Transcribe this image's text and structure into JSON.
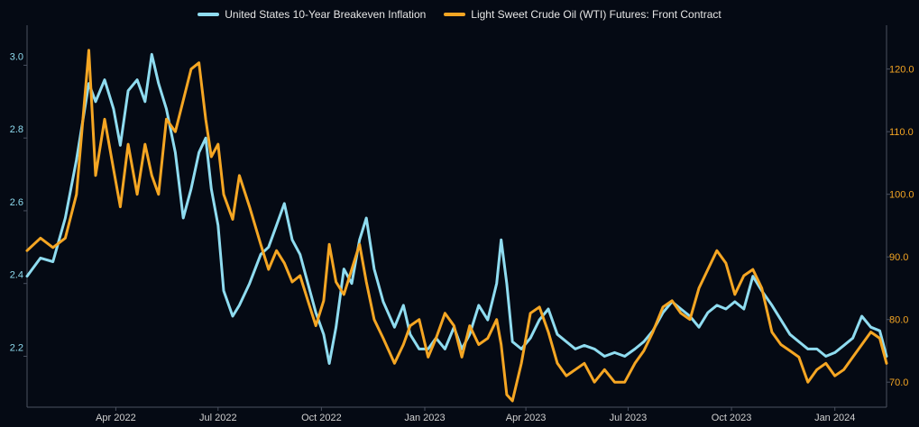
{
  "colors": {
    "background": "#050a14",
    "axis": "#4a5160",
    "breakeven": "#8fdcf0",
    "oil": "#f5a623",
    "tick_left": "#8fdcf0",
    "tick_right": "#f5a623",
    "tick_x": "#d0d0d0"
  },
  "chart_data": {
    "type": "line",
    "grid": false,
    "legend_position": "top-center",
    "x_ticks": [
      "Apr 2022",
      "Jul 2022",
      "Oct 2022",
      "Jan 2023",
      "Apr 2023",
      "Jul 2023",
      "Oct 2023",
      "Jan 2024"
    ],
    "x_range": [
      "2022-01-12",
      "2024-02-16"
    ],
    "y_left": {
      "ticks": [
        "2.2",
        "2.4",
        "2.6",
        "2.8",
        "3.0"
      ],
      "range": [
        2.06,
        3.11
      ]
    },
    "y_right": {
      "ticks": [
        "70.0",
        "80.0",
        "90.0",
        "100.0",
        "110.0",
        "120.0"
      ],
      "range": [
        66.0,
        127.0
      ]
    },
    "series": [
      {
        "name": "United States 10-Year Breakeven Inflation",
        "axis": "left",
        "points": [
          [
            "2022-01-12",
            2.42
          ],
          [
            "2022-01-24",
            2.47
          ],
          [
            "2022-02-04",
            2.46
          ],
          [
            "2022-02-15",
            2.58
          ],
          [
            "2022-02-25",
            2.74
          ],
          [
            "2022-03-08",
            2.95
          ],
          [
            "2022-03-14",
            2.9
          ],
          [
            "2022-03-22",
            2.96
          ],
          [
            "2022-03-30",
            2.88
          ],
          [
            "2022-04-05",
            2.78
          ],
          [
            "2022-04-12",
            2.93
          ],
          [
            "2022-04-20",
            2.96
          ],
          [
            "2022-04-27",
            2.9
          ],
          [
            "2022-05-03",
            3.03
          ],
          [
            "2022-05-09",
            2.95
          ],
          [
            "2022-05-16",
            2.88
          ],
          [
            "2022-05-24",
            2.76
          ],
          [
            "2022-05-31",
            2.58
          ],
          [
            "2022-06-07",
            2.66
          ],
          [
            "2022-06-14",
            2.76
          ],
          [
            "2022-06-20",
            2.8
          ],
          [
            "2022-06-25",
            2.66
          ],
          [
            "2022-07-01",
            2.56
          ],
          [
            "2022-07-06",
            2.38
          ],
          [
            "2022-07-14",
            2.31
          ],
          [
            "2022-07-20",
            2.34
          ],
          [
            "2022-07-29",
            2.4
          ],
          [
            "2022-08-08",
            2.48
          ],
          [
            "2022-08-15",
            2.5
          ],
          [
            "2022-08-22",
            2.56
          ],
          [
            "2022-08-29",
            2.62
          ],
          [
            "2022-09-05",
            2.52
          ],
          [
            "2022-09-12",
            2.48
          ],
          [
            "2022-09-19",
            2.4
          ],
          [
            "2022-09-26",
            2.32
          ],
          [
            "2022-10-03",
            2.26
          ],
          [
            "2022-10-08",
            2.18
          ],
          [
            "2022-10-14",
            2.28
          ],
          [
            "2022-10-21",
            2.44
          ],
          [
            "2022-10-28",
            2.4
          ],
          [
            "2022-11-04",
            2.52
          ],
          [
            "2022-11-10",
            2.58
          ],
          [
            "2022-11-17",
            2.44
          ],
          [
            "2022-11-25",
            2.35
          ],
          [
            "2022-12-05",
            2.28
          ],
          [
            "2022-12-13",
            2.34
          ],
          [
            "2022-12-19",
            2.26
          ],
          [
            "2022-12-27",
            2.22
          ],
          [
            "2023-01-04",
            2.22
          ],
          [
            "2023-01-11",
            2.25
          ],
          [
            "2023-01-19",
            2.22
          ],
          [
            "2023-01-27",
            2.28
          ],
          [
            "2023-02-03",
            2.22
          ],
          [
            "2023-02-10",
            2.26
          ],
          [
            "2023-02-18",
            2.34
          ],
          [
            "2023-02-26",
            2.3
          ],
          [
            "2023-03-06",
            2.4
          ],
          [
            "2023-03-10",
            2.52
          ],
          [
            "2023-03-15",
            2.4
          ],
          [
            "2023-03-20",
            2.24
          ],
          [
            "2023-03-28",
            2.22
          ],
          [
            "2023-04-05",
            2.25
          ],
          [
            "2023-04-13",
            2.3
          ],
          [
            "2023-04-21",
            2.33
          ],
          [
            "2023-04-29",
            2.26
          ],
          [
            "2023-05-07",
            2.24
          ],
          [
            "2023-05-15",
            2.22
          ],
          [
            "2023-05-23",
            2.23
          ],
          [
            "2023-06-01",
            2.22
          ],
          [
            "2023-06-10",
            2.2
          ],
          [
            "2023-06-19",
            2.21
          ],
          [
            "2023-06-28",
            2.2
          ],
          [
            "2023-07-07",
            2.22
          ],
          [
            "2023-07-15",
            2.24
          ],
          [
            "2023-07-23",
            2.27
          ],
          [
            "2023-08-01",
            2.32
          ],
          [
            "2023-08-09",
            2.35
          ],
          [
            "2023-08-17",
            2.33
          ],
          [
            "2023-08-25",
            2.31
          ],
          [
            "2023-09-02",
            2.28
          ],
          [
            "2023-09-10",
            2.32
          ],
          [
            "2023-09-18",
            2.34
          ],
          [
            "2023-09-26",
            2.33
          ],
          [
            "2023-10-04",
            2.35
          ],
          [
            "2023-10-12",
            2.33
          ],
          [
            "2023-10-20",
            2.42
          ],
          [
            "2023-10-28",
            2.38
          ],
          [
            "2023-11-06",
            2.34
          ],
          [
            "2023-11-14",
            2.3
          ],
          [
            "2023-11-22",
            2.26
          ],
          [
            "2023-11-30",
            2.24
          ],
          [
            "2023-12-08",
            2.22
          ],
          [
            "2023-12-16",
            2.22
          ],
          [
            "2023-12-24",
            2.2
          ],
          [
            "2024-01-01",
            2.21
          ],
          [
            "2024-01-09",
            2.23
          ],
          [
            "2024-01-17",
            2.25
          ],
          [
            "2024-01-25",
            2.31
          ],
          [
            "2024-02-02",
            2.28
          ],
          [
            "2024-02-10",
            2.27
          ],
          [
            "2024-02-16",
            2.2
          ]
        ]
      },
      {
        "name": "Light Sweet Crude Oil (WTI) Futures: Front Contract",
        "axis": "right",
        "points": [
          [
            "2022-01-12",
            91.0
          ],
          [
            "2022-01-24",
            93.0
          ],
          [
            "2022-02-04",
            91.5
          ],
          [
            "2022-02-15",
            93.0
          ],
          [
            "2022-02-25",
            100.0
          ],
          [
            "2022-03-08",
            123.0
          ],
          [
            "2022-03-14",
            103.0
          ],
          [
            "2022-03-22",
            112.0
          ],
          [
            "2022-03-30",
            104.0
          ],
          [
            "2022-04-05",
            98.0
          ],
          [
            "2022-04-12",
            108.0
          ],
          [
            "2022-04-20",
            100.0
          ],
          [
            "2022-04-27",
            108.0
          ],
          [
            "2022-05-03",
            103.0
          ],
          [
            "2022-05-09",
            100.0
          ],
          [
            "2022-05-16",
            112.0
          ],
          [
            "2022-05-24",
            110.0
          ],
          [
            "2022-05-31",
            115.0
          ],
          [
            "2022-06-07",
            120.0
          ],
          [
            "2022-06-14",
            121.0
          ],
          [
            "2022-06-20",
            112.0
          ],
          [
            "2022-06-25",
            106.0
          ],
          [
            "2022-07-01",
            108.0
          ],
          [
            "2022-07-06",
            100.0
          ],
          [
            "2022-07-14",
            96.0
          ],
          [
            "2022-07-20",
            103.0
          ],
          [
            "2022-07-29",
            98.0
          ],
          [
            "2022-08-08",
            92.0
          ],
          [
            "2022-08-15",
            88.0
          ],
          [
            "2022-08-22",
            91.0
          ],
          [
            "2022-08-29",
            89.0
          ],
          [
            "2022-09-05",
            86.0
          ],
          [
            "2022-09-12",
            87.0
          ],
          [
            "2022-09-19",
            83.0
          ],
          [
            "2022-09-26",
            79.0
          ],
          [
            "2022-10-03",
            83.0
          ],
          [
            "2022-10-08",
            92.0
          ],
          [
            "2022-10-14",
            86.0
          ],
          [
            "2022-10-21",
            84.0
          ],
          [
            "2022-10-28",
            88.0
          ],
          [
            "2022-11-04",
            92.0
          ],
          [
            "2022-11-10",
            86.0
          ],
          [
            "2022-11-17",
            80.0
          ],
          [
            "2022-11-25",
            77.0
          ],
          [
            "2022-12-05",
            73.0
          ],
          [
            "2022-12-13",
            76.0
          ],
          [
            "2022-12-19",
            79.0
          ],
          [
            "2022-12-27",
            80.0
          ],
          [
            "2023-01-04",
            74.0
          ],
          [
            "2023-01-11",
            77.0
          ],
          [
            "2023-01-19",
            81.0
          ],
          [
            "2023-01-27",
            79.0
          ],
          [
            "2023-02-03",
            74.0
          ],
          [
            "2023-02-10",
            79.0
          ],
          [
            "2023-02-18",
            76.0
          ],
          [
            "2023-02-26",
            77.0
          ],
          [
            "2023-03-06",
            80.0
          ],
          [
            "2023-03-10",
            76.0
          ],
          [
            "2023-03-15",
            68.0
          ],
          [
            "2023-03-20",
            67.0
          ],
          [
            "2023-03-28",
            73.0
          ],
          [
            "2023-04-05",
            81.0
          ],
          [
            "2023-04-13",
            82.0
          ],
          [
            "2023-04-21",
            78.0
          ],
          [
            "2023-04-29",
            73.0
          ],
          [
            "2023-05-07",
            71.0
          ],
          [
            "2023-05-15",
            72.0
          ],
          [
            "2023-05-23",
            73.0
          ],
          [
            "2023-06-01",
            70.0
          ],
          [
            "2023-06-10",
            72.0
          ],
          [
            "2023-06-19",
            70.0
          ],
          [
            "2023-06-28",
            70.0
          ],
          [
            "2023-07-07",
            73.0
          ],
          [
            "2023-07-15",
            75.0
          ],
          [
            "2023-07-23",
            78.0
          ],
          [
            "2023-08-01",
            82.0
          ],
          [
            "2023-08-09",
            83.0
          ],
          [
            "2023-08-17",
            81.0
          ],
          [
            "2023-08-25",
            80.0
          ],
          [
            "2023-09-02",
            85.0
          ],
          [
            "2023-09-10",
            88.0
          ],
          [
            "2023-09-18",
            91.0
          ],
          [
            "2023-09-26",
            89.0
          ],
          [
            "2023-10-04",
            84.0
          ],
          [
            "2023-10-12",
            87.0
          ],
          [
            "2023-10-20",
            88.0
          ],
          [
            "2023-10-28",
            85.0
          ],
          [
            "2023-11-06",
            78.0
          ],
          [
            "2023-11-14",
            76.0
          ],
          [
            "2023-11-22",
            75.0
          ],
          [
            "2023-11-30",
            74.0
          ],
          [
            "2023-12-08",
            70.0
          ],
          [
            "2023-12-16",
            72.0
          ],
          [
            "2023-12-24",
            73.0
          ],
          [
            "2024-01-01",
            71.0
          ],
          [
            "2024-01-09",
            72.0
          ],
          [
            "2024-01-17",
            74.0
          ],
          [
            "2024-01-25",
            76.0
          ],
          [
            "2024-02-02",
            78.0
          ],
          [
            "2024-02-10",
            77.0
          ],
          [
            "2024-02-16",
            73.0
          ]
        ]
      }
    ]
  }
}
